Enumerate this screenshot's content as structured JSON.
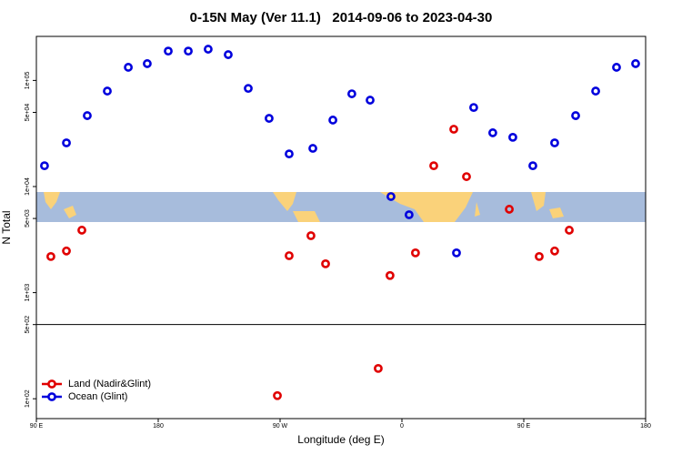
{
  "chart_data": {
    "type": "scatter",
    "title": "0-15N May (Ver 11.1)   2014-09-06 to 2023-04-30",
    "xlabel": "Longitude (deg E)",
    "ylabel": "N Total",
    "xlim": [
      90,
      540
    ],
    "xticks": [
      {
        "value": 90,
        "label": "90 E"
      },
      180,
      {
        "value": 270,
        "label": "90 W"
      },
      {
        "value": 360,
        "label": "0"
      },
      {
        "value": 450,
        "label": "90 E"
      },
      {
        "value": 540,
        "label": "180"
      }
    ],
    "ylim": [
      65,
      260000
    ],
    "ylog": true,
    "yticks": [
      {
        "value": 100,
        "label": "1e+02"
      },
      {
        "value": 500,
        "label": "5e+02"
      },
      {
        "value": 1000,
        "label": "1e+03"
      },
      {
        "value": 5000,
        "label": "5e+03"
      },
      {
        "value": 10000,
        "label": "1e+04"
      },
      {
        "value": 50000,
        "label": "5e+04"
      },
      {
        "value": 100000,
        "label": "1e+05"
      }
    ],
    "hline": 500,
    "legend": "bottom-left",
    "series": [
      {
        "name": "Land (Nadir&Glint)",
        "color": "#e00000",
        "x": [
          100.7,
          112.2,
          123.6,
          276.7,
          292.8,
          303.6,
          351.2,
          370.0,
          383.5,
          398.3,
          407.7,
          439.3,
          461.4,
          472.8,
          483.6,
          268.0,
          342.5
        ],
        "values": [
          2190,
          2470,
          3880,
          2230,
          3440,
          1870,
          1450,
          2370,
          15700,
          34700,
          12400,
          6110,
          2190,
          2470,
          3880,
          107,
          193
        ]
      },
      {
        "name": "Ocean (Glint)",
        "color": "#0000dd",
        "x": [
          96.0,
          112.2,
          127.6,
          142.4,
          157.9,
          171.9,
          187.4,
          202.2,
          216.9,
          231.7,
          246.5,
          261.9,
          276.7,
          294.2,
          309.0,
          323.0,
          336.5,
          351.9,
          365.3,
          400.3,
          413.0,
          427.1,
          441.9,
          456.7,
          472.8,
          488.3,
          503.1,
          518.5,
          532.6
        ],
        "values": [
          15700,
          25800,
          46600,
          79400,
          133000,
          144000,
          189000,
          189000,
          197000,
          175000,
          84100,
          43900,
          20300,
          22900,
          42300,
          74800,
          65200,
          8050,
          5420,
          2370,
          55600,
          32100,
          29100,
          15700,
          25800,
          46600,
          79400,
          133000,
          144000
        ]
      }
    ]
  }
}
